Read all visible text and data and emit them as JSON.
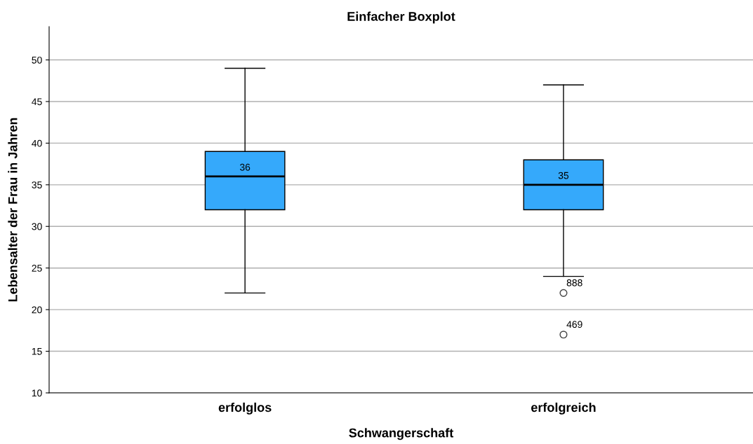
{
  "chart_data": {
    "type": "box",
    "title": "Einfacher Boxplot",
    "xlabel": "Schwangerschaft",
    "ylabel": "Lebensalter der Frau in Jahren",
    "categories": [
      "erfolglos",
      "erfolgreich"
    ],
    "series": [
      {
        "color": "#35a9fb",
        "boxes": [
          {
            "low": 22,
            "q1": 32,
            "median": 36,
            "q3": 39,
            "high": 49
          },
          {
            "low": 24,
            "q1": 32,
            "median": 35,
            "q3": 38,
            "high": 47,
            "outliers": [
              22,
              17
            ]
          }
        ]
      }
    ],
    "ylim": [
      10,
      54
    ],
    "yticks": [
      10,
      15,
      20,
      25,
      30,
      35,
      40,
      45,
      50
    ],
    "grid": "y",
    "legend": false,
    "marker": "circle",
    "annotations": [
      {
        "text": "36",
        "x": "erfolglos",
        "y": 36
      },
      {
        "text": "35",
        "x": "erfolgreich",
        "y": 35
      },
      "888",
      "469"
    ]
  }
}
